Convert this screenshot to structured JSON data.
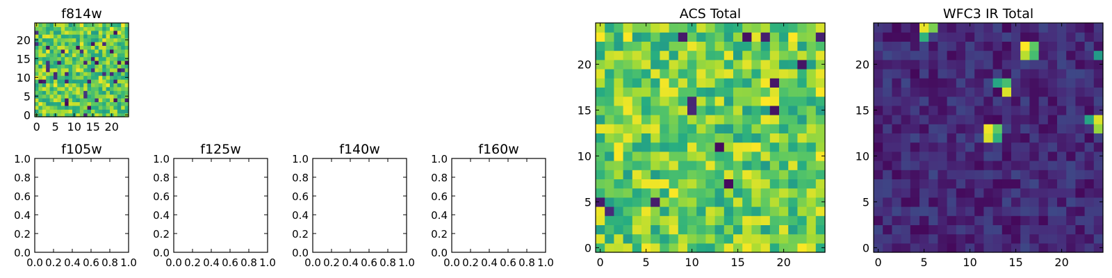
{
  "chart_data": [
    {
      "id": "f814w",
      "type": "heatmap",
      "title": "f814w",
      "grid_shape": [
        25,
        25
      ],
      "xlim": [
        -0.5,
        24.5
      ],
      "ylim": [
        -0.5,
        24.5
      ],
      "xticks": [
        0,
        5,
        10,
        15,
        20
      ],
      "yticks": [
        0,
        5,
        10,
        15,
        20
      ],
      "colormap": "viridis",
      "seed": 814,
      "value_range": [
        0.55,
        0.95
      ],
      "outlier_rate": 0.05,
      "hot_rate": 0.03
    },
    {
      "id": "f105w",
      "type": "empty",
      "title": "f105w",
      "xlim": [
        0,
        1
      ],
      "ylim": [
        0,
        1
      ],
      "xticks": [
        "0.0",
        "0.2",
        "0.4",
        "0.6",
        "0.8",
        "1.0"
      ],
      "yticks": [
        "0.0",
        "0.2",
        "0.4",
        "0.6",
        "0.8",
        "1.0"
      ]
    },
    {
      "id": "f125w",
      "type": "empty",
      "title": "f125w",
      "xlim": [
        0,
        1
      ],
      "ylim": [
        0,
        1
      ],
      "xticks": [
        "0.0",
        "0.2",
        "0.4",
        "0.6",
        "0.8",
        "1.0"
      ],
      "yticks": [
        "0.0",
        "0.2",
        "0.4",
        "0.6",
        "0.8",
        "1.0"
      ]
    },
    {
      "id": "f140w",
      "type": "empty",
      "title": "f140w",
      "xlim": [
        0,
        1
      ],
      "ylim": [
        0,
        1
      ],
      "xticks": [
        "0.0",
        "0.2",
        "0.4",
        "0.6",
        "0.8",
        "1.0"
      ],
      "yticks": [
        "0.0",
        "0.2",
        "0.4",
        "0.6",
        "0.8",
        "1.0"
      ]
    },
    {
      "id": "f160w",
      "type": "empty",
      "title": "f160w",
      "xlim": [
        0,
        1
      ],
      "ylim": [
        0,
        1
      ],
      "xticks": [
        "0.0",
        "0.2",
        "0.4",
        "0.6",
        "0.8",
        "1.0"
      ],
      "yticks": [
        "0.0",
        "0.2",
        "0.4",
        "0.6",
        "0.8",
        "1.0"
      ]
    },
    {
      "id": "acs_total",
      "type": "heatmap",
      "title": "ACS Total",
      "grid_shape": [
        25,
        25
      ],
      "xlim": [
        -0.5,
        24.5
      ],
      "ylim": [
        -0.5,
        24.5
      ],
      "xticks": [
        0,
        5,
        10,
        15,
        20
      ],
      "yticks": [
        0,
        5,
        10,
        15,
        20
      ],
      "colormap": "viridis",
      "seed": 2718,
      "value_range": [
        0.55,
        0.98
      ],
      "outlier_rate": 0.03,
      "hot_rate": 0.05
    },
    {
      "id": "wfc3_ir_total",
      "type": "heatmap",
      "title": "WFC3 IR Total",
      "grid_shape": [
        25,
        25
      ],
      "xlim": [
        -0.5,
        24.5
      ],
      "ylim": [
        -0.5,
        24.5
      ],
      "xticks": [
        0,
        5,
        10,
        15,
        20
      ],
      "yticks": [
        0,
        5,
        10,
        15,
        20
      ],
      "colormap": "viridis",
      "seed": 1603,
      "value_range": [
        0.02,
        0.22
      ],
      "outlier_rate": 0.02,
      "hot_rate": 0.0,
      "hotspots": [
        {
          "x": 5,
          "y": 24,
          "v": 0.97
        },
        {
          "x": 6,
          "y": 24,
          "v": 0.8
        },
        {
          "x": 5,
          "y": 23,
          "v": 0.65
        },
        {
          "x": 16,
          "y": 22,
          "v": 1.0
        },
        {
          "x": 17,
          "y": 22,
          "v": 0.75
        },
        {
          "x": 16,
          "y": 21,
          "v": 0.9
        },
        {
          "x": 17,
          "y": 21,
          "v": 0.7
        },
        {
          "x": 13,
          "y": 18,
          "v": 0.6
        },
        {
          "x": 14,
          "y": 18,
          "v": 0.7
        },
        {
          "x": 14,
          "y": 17,
          "v": 0.95
        },
        {
          "x": 24,
          "y": 21,
          "v": 0.55
        },
        {
          "x": 24,
          "y": 14,
          "v": 0.95
        },
        {
          "x": 24,
          "y": 13,
          "v": 0.85
        },
        {
          "x": 23,
          "y": 14,
          "v": 0.6
        },
        {
          "x": 12,
          "y": 13,
          "v": 0.98
        },
        {
          "x": 13,
          "y": 13,
          "v": 0.75
        },
        {
          "x": 12,
          "y": 12,
          "v": 0.95
        },
        {
          "x": 13,
          "y": 12,
          "v": 0.65
        }
      ]
    }
  ]
}
